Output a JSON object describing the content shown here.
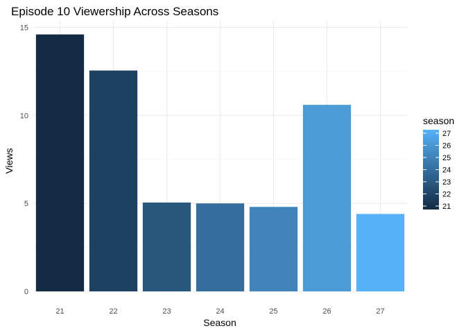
{
  "chart_data": {
    "type": "bar",
    "title": "Episode 10 Viewership Across Seasons",
    "xlabel": "Season",
    "ylabel": "Views",
    "categories": [
      "21",
      "22",
      "23",
      "24",
      "25",
      "26",
      "27"
    ],
    "values": [
      14.6,
      12.55,
      5.05,
      5.0,
      4.8,
      10.6,
      4.4
    ],
    "ylim": [
      0,
      15
    ],
    "yticks": [
      0,
      5,
      10,
      15
    ],
    "grid": true,
    "legend": {
      "title": "season",
      "placement": "right",
      "ticks": [
        27,
        26,
        25,
        24,
        23,
        22,
        21
      ],
      "range": [
        21,
        27
      ],
      "color_low": "#132b43",
      "color_high": "#56b1f7"
    }
  }
}
